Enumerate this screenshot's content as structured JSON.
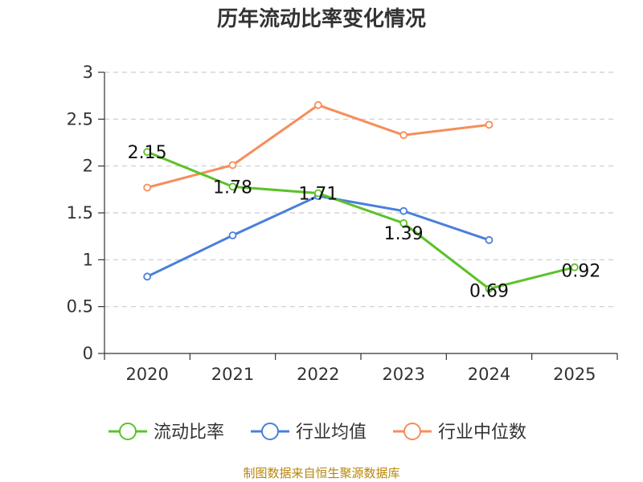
{
  "chart_data": {
    "type": "line",
    "title": "历年流动比率变化情况",
    "categories": [
      "2020",
      "2021",
      "2022",
      "2023",
      "2024",
      "2025"
    ],
    "ylim": [
      0,
      3
    ],
    "yticks": [
      "0",
      "0.5",
      "1",
      "1.5",
      "2",
      "2.5",
      "3"
    ],
    "ytick_values": [
      0,
      0.5,
      1,
      1.5,
      2,
      2.5,
      3
    ],
    "grid": true,
    "legend_position": "bottom",
    "series": [
      {
        "name": "流动比率",
        "color": "#5cc229",
        "values": [
          2.15,
          1.78,
          1.71,
          1.39,
          0.69,
          0.92
        ],
        "labels": [
          "2.15",
          "1.78",
          "1.71",
          "1.39",
          "0.69",
          "0.92"
        ]
      },
      {
        "name": "行业均值",
        "color": "#4a7fdb",
        "values": [
          0.82,
          1.26,
          1.68,
          1.52,
          1.21,
          null
        ]
      },
      {
        "name": "行业中位数",
        "color": "#f58e5b",
        "values": [
          1.77,
          2.01,
          2.65,
          2.33,
          2.44,
          null
        ]
      }
    ],
    "source": "制图数据来自恒生聚源数据库"
  }
}
